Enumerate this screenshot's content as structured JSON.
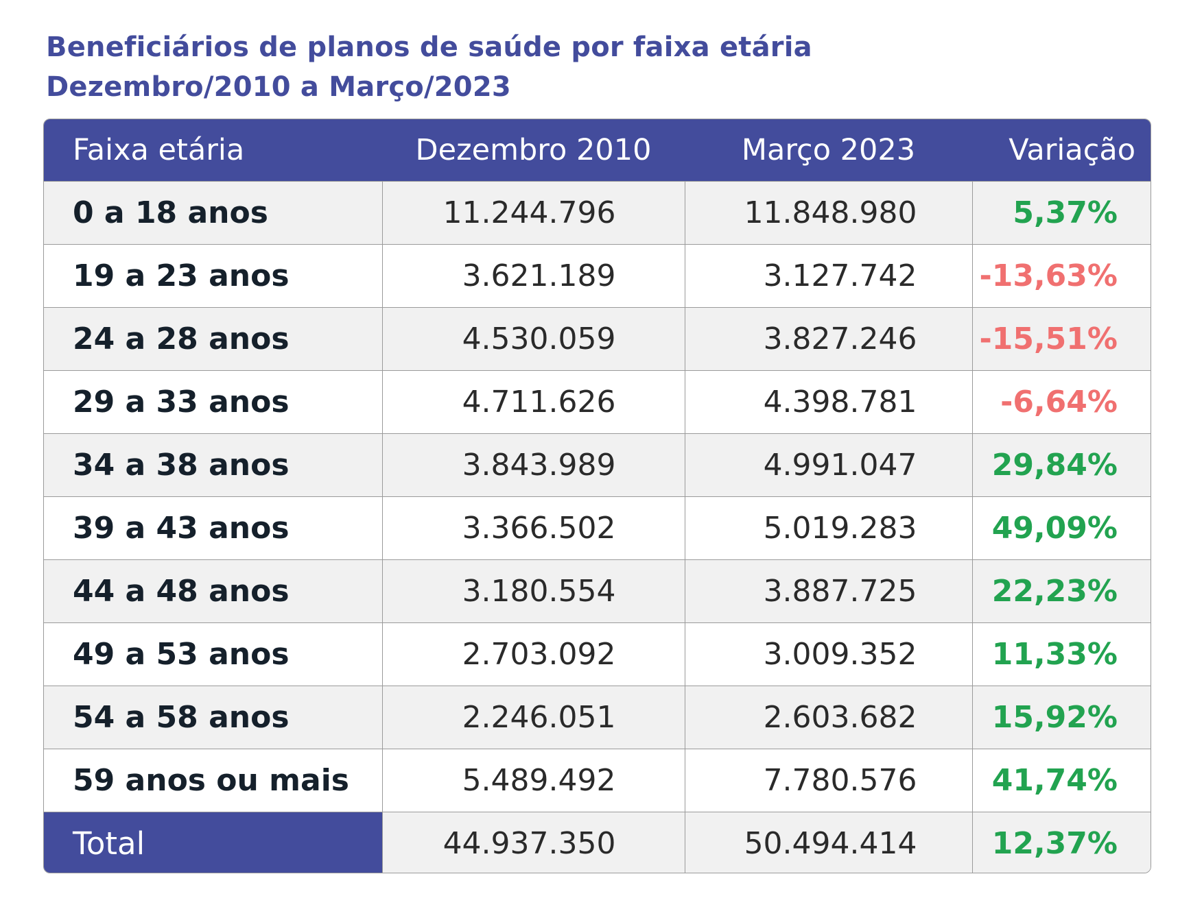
{
  "title": {
    "line1": "Beneficiários de planos de saúde por faixa etária",
    "line2": "Dezembro/2010 a Março/2023"
  },
  "colors": {
    "header_bg": "#434c9c",
    "title": "#434c9c",
    "positive": "#22a350",
    "negative": "#f07070",
    "stripe": "#f1f1f1"
  },
  "table": {
    "headers": [
      "Faixa etária",
      "Dezembro 2010",
      "Março 2023",
      "Variação"
    ],
    "rows": [
      {
        "age": "0 a 18 anos",
        "dec2010": "11.244.796",
        "mar2023": "11.848.980",
        "variation": "5,37%",
        "sign": "positive"
      },
      {
        "age": "19 a 23 anos",
        "dec2010": "3.621.189",
        "mar2023": "3.127.742",
        "variation": "-13,63%",
        "sign": "negative"
      },
      {
        "age": "24 a 28 anos",
        "dec2010": "4.530.059",
        "mar2023": "3.827.246",
        "variation": "-15,51%",
        "sign": "negative"
      },
      {
        "age": "29 a 33 anos",
        "dec2010": "4.711.626",
        "mar2023": "4.398.781",
        "variation": "-6,64%",
        "sign": "negative"
      },
      {
        "age": "34 a 38 anos",
        "dec2010": "3.843.989",
        "mar2023": "4.991.047",
        "variation": "29,84%",
        "sign": "positive"
      },
      {
        "age": "39 a 43 anos",
        "dec2010": "3.366.502",
        "mar2023": "5.019.283",
        "variation": "49,09%",
        "sign": "positive"
      },
      {
        "age": "44 a 48 anos",
        "dec2010": "3.180.554",
        "mar2023": "3.887.725",
        "variation": "22,23%",
        "sign": "positive"
      },
      {
        "age": "49 a 53 anos",
        "dec2010": "2.703.092",
        "mar2023": "3.009.352",
        "variation": "11,33%",
        "sign": "positive"
      },
      {
        "age": "54 a 58 anos",
        "dec2010": "2.246.051",
        "mar2023": "2.603.682",
        "variation": "15,92%",
        "sign": "positive"
      },
      {
        "age": "59 anos ou mais",
        "dec2010": "5.489.492",
        "mar2023": "7.780.576",
        "variation": "41,74%",
        "sign": "positive"
      }
    ],
    "total": {
      "label": "Total",
      "dec2010": "44.937.350",
      "mar2023": "50.494.414",
      "variation": "12,37%",
      "sign": "positive"
    }
  }
}
